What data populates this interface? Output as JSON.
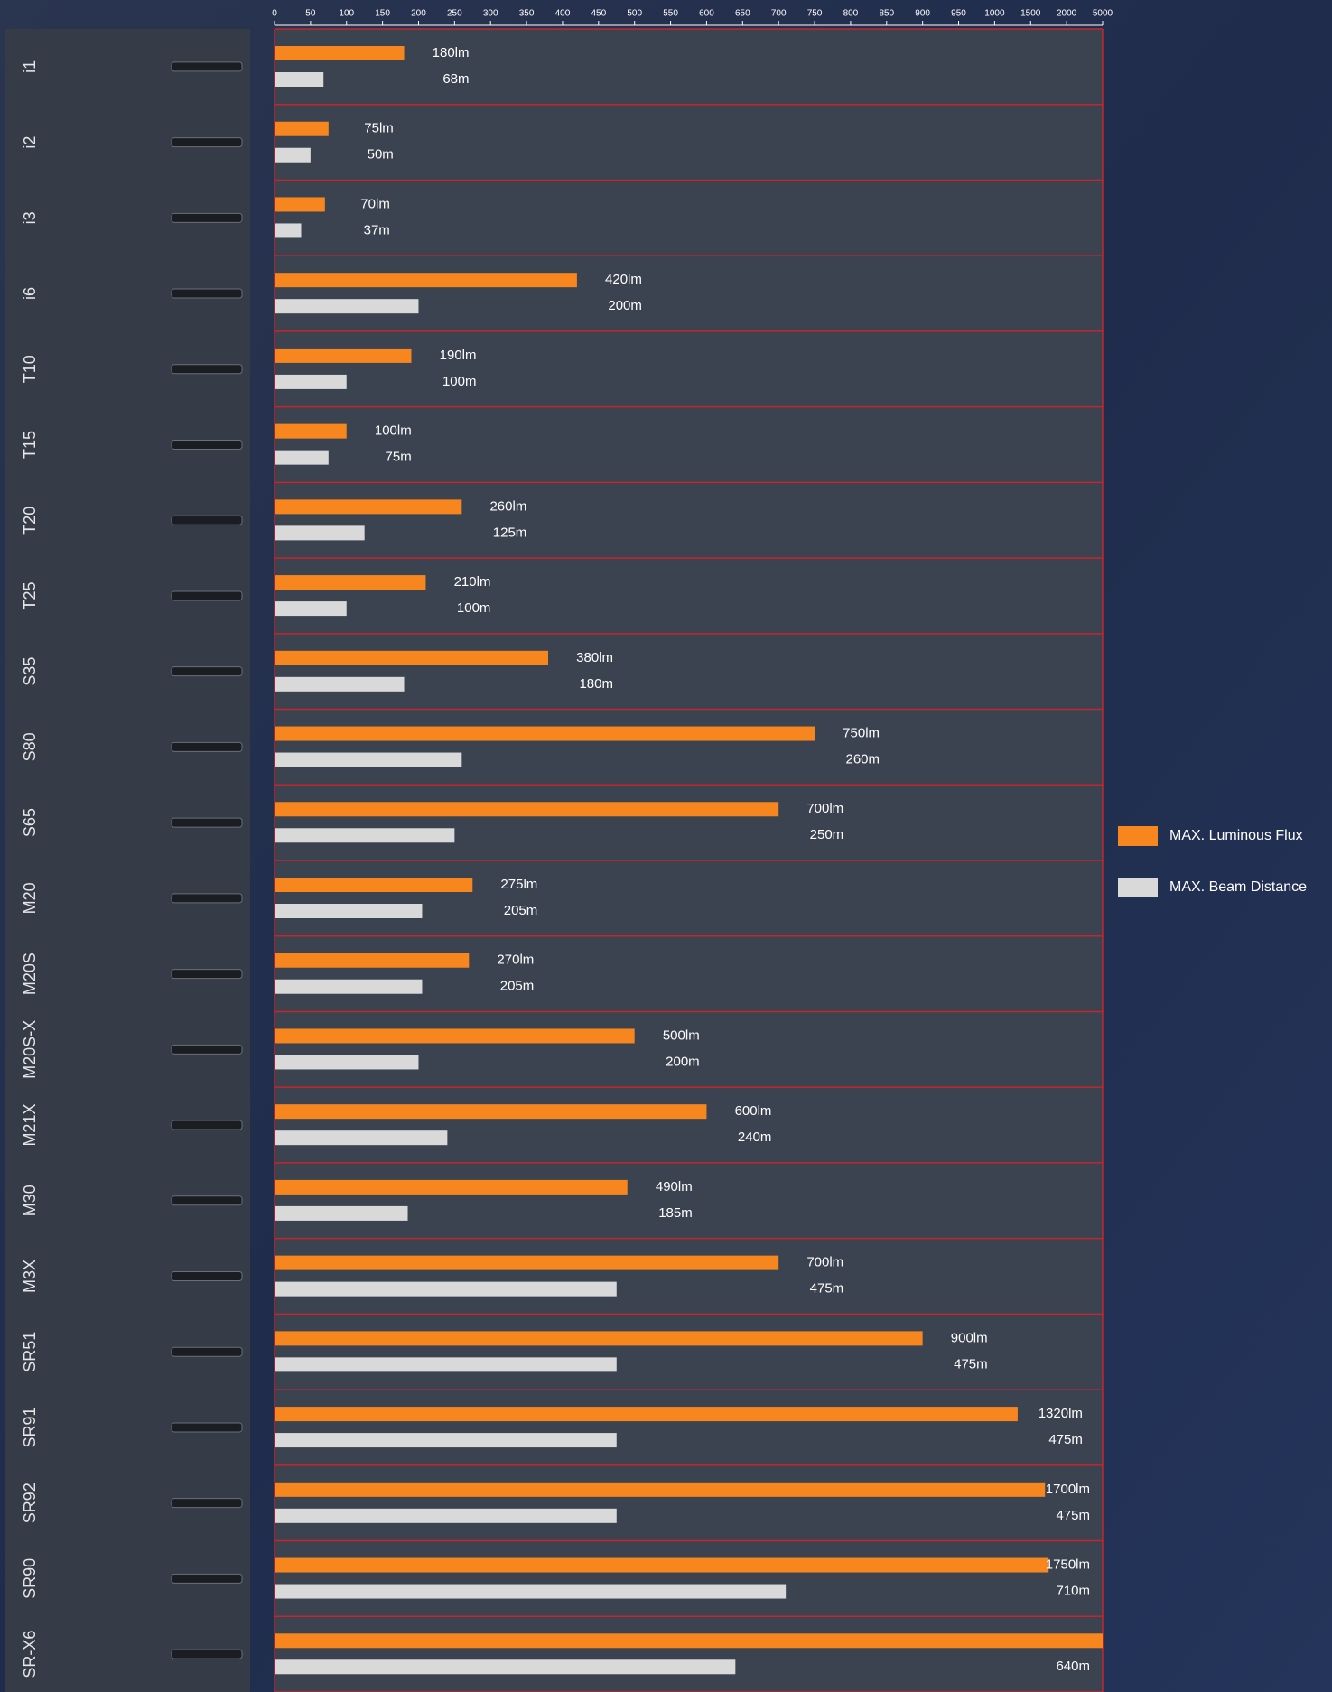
{
  "chart_data": {
    "type": "bar",
    "orientation": "horizontal",
    "categories": [
      "i1",
      "i2",
      "i3",
      "i6",
      "T10",
      "T15",
      "T20",
      "T25",
      "S35",
      "S80",
      "S65",
      "M20",
      "M20S",
      "M20S-X",
      "M21X",
      "M30",
      "M3X",
      "SR51",
      "SR91",
      "SR92",
      "SR90",
      "SR-X6"
    ],
    "series": [
      {
        "name": "MAX. Luminous Flux",
        "color": "#f7861f",
        "values": [
          180,
          75,
          70,
          420,
          190,
          100,
          260,
          210,
          380,
          750,
          700,
          275,
          270,
          500,
          600,
          490,
          700,
          900,
          1320,
          1700,
          1750,
          5000
        ],
        "value_labels": [
          "180lm",
          "75lm",
          "70lm",
          "420lm",
          "190lm",
          "100lm",
          "260lm",
          "210lm",
          "380lm",
          "750lm",
          "700lm",
          "275lm",
          "270lm",
          "500lm",
          "600lm",
          "490lm",
          "700lm",
          "900lm",
          "1320lm",
          "1700lm",
          "1750lm",
          null
        ]
      },
      {
        "name": "MAX. Beam Distance",
        "color": "#d9d9d9",
        "values": [
          68,
          50,
          37,
          200,
          100,
          75,
          125,
          100,
          180,
          260,
          250,
          205,
          205,
          200,
          240,
          185,
          475,
          475,
          475,
          475,
          710,
          640
        ],
        "value_labels": [
          "68m",
          "50m",
          "37m",
          "200m",
          "100m",
          "75m",
          "125m",
          "100m",
          "180m",
          "260m",
          "250m",
          "205m",
          "205m",
          "200m",
          "240m",
          "185m",
          "475m",
          "475m",
          "475m",
          "475m",
          "710m",
          "640m"
        ]
      }
    ],
    "xlim": [
      0,
      5000
    ],
    "xticks": [
      0,
      50,
      100,
      150,
      200,
      250,
      300,
      350,
      400,
      450,
      500,
      550,
      600,
      650,
      700,
      750,
      800,
      850,
      900,
      950,
      1000,
      1500,
      2000,
      5000
    ],
    "grid": true,
    "legend": "right"
  }
}
